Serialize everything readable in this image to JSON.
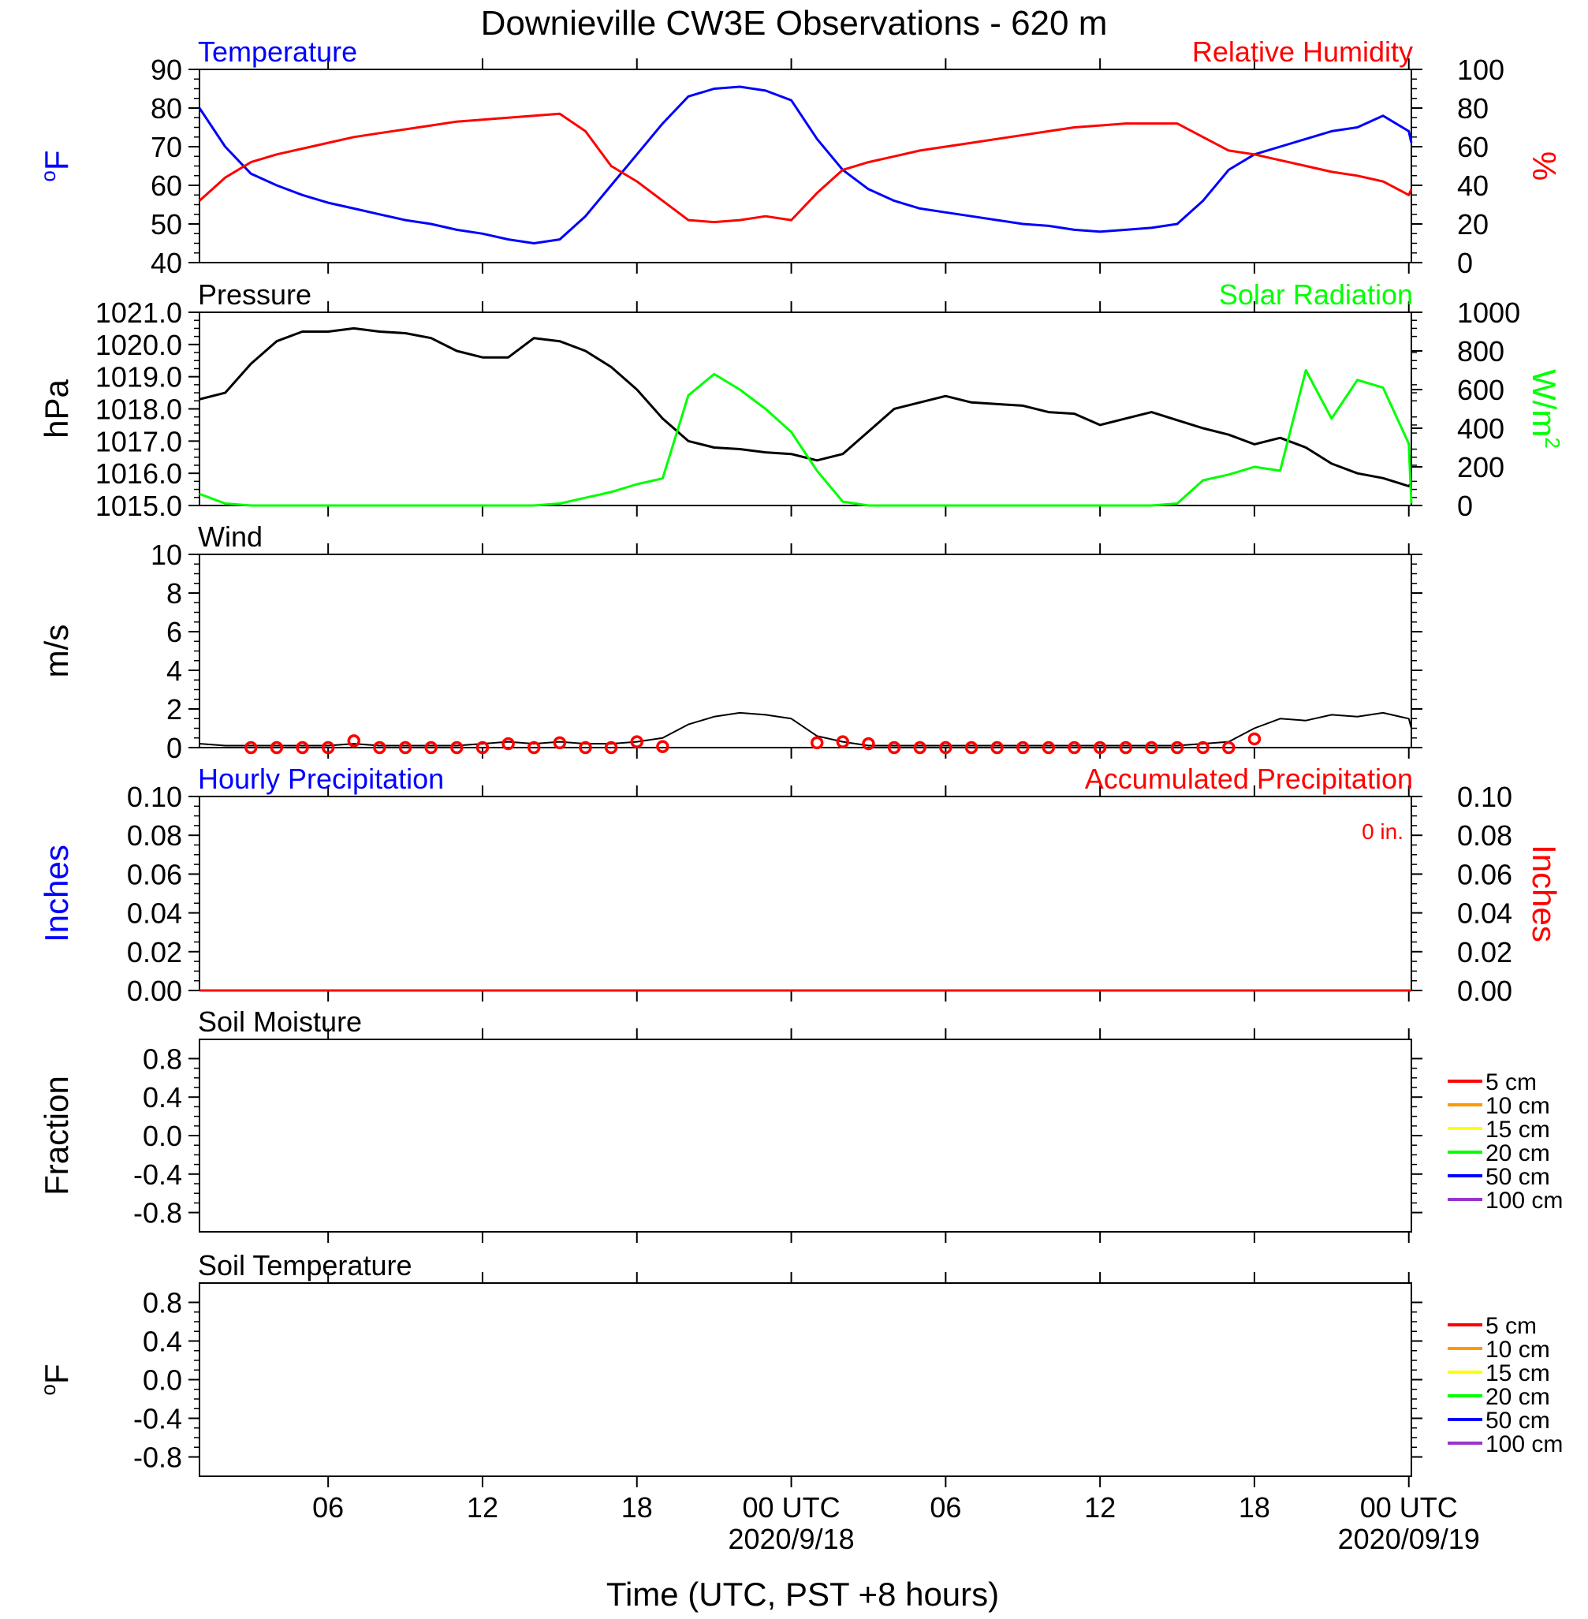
{
  "title": "Downieville CW3E Observations - 620 m",
  "x_axis": {
    "label": "Time (UTC, PST +8 hours)",
    "ticks": [
      {
        "label": "06",
        "sub": "",
        "hour": 6
      },
      {
        "label": "12",
        "sub": "",
        "hour": 12
      },
      {
        "label": "18",
        "sub": "",
        "hour": 18
      },
      {
        "label": "00 UTC",
        "sub": "2020/9/18",
        "hour": 24
      },
      {
        "label": "06",
        "sub": "",
        "hour": 30
      },
      {
        "label": "12",
        "sub": "",
        "hour": 36
      },
      {
        "label": "18",
        "sub": "",
        "hour": 42
      },
      {
        "label": "00 UTC",
        "sub": "2020/09/19",
        "hour": 48
      }
    ],
    "range_hours": [
      1,
      48.1
    ]
  },
  "chart_data": [
    {
      "type": "line",
      "title_left": "Temperature",
      "title_right": "Relative Humidity",
      "ylabel_left": "oF",
      "ylabel_right": "%",
      "ylim_left": [
        40,
        90
      ],
      "ylim_right": [
        0,
        100
      ],
      "yticks_left": [
        "40",
        "50",
        "60",
        "70",
        "80",
        "90"
      ],
      "yticks_right": [
        "0",
        "20",
        "40",
        "60",
        "80",
        "100"
      ],
      "x_hours": [
        1,
        2,
        3,
        4,
        5,
        6,
        7,
        8,
        9,
        10,
        11,
        12,
        13,
        14,
        15,
        16,
        17,
        18,
        19,
        20,
        21,
        22,
        23,
        24,
        25,
        26,
        27,
        28,
        29,
        30,
        31,
        32,
        33,
        34,
        35,
        36,
        37,
        38,
        39,
        40,
        41,
        42,
        43,
        44,
        45,
        46,
        47,
        48,
        48.1
      ],
      "series": [
        {
          "name": "Temperature",
          "axis": "left",
          "color": "#0000ff",
          "values": [
            80,
            70,
            63,
            60,
            57.5,
            55.5,
            54,
            52.5,
            51,
            50,
            48.5,
            47.5,
            46,
            45,
            46,
            52,
            60,
            68,
            76,
            83,
            85,
            85.5,
            84.5,
            82,
            72,
            64,
            59,
            56,
            54,
            53,
            52,
            51,
            50,
            49.5,
            48.5,
            48,
            48.5,
            49,
            50,
            56,
            64,
            68,
            70,
            72,
            74,
            75,
            78,
            74,
            71
          ]
        },
        {
          "name": "Relative Humidity",
          "axis": "right",
          "color": "#ff0000",
          "values": [
            32,
            44,
            52,
            56,
            59,
            62,
            65,
            67,
            69,
            71,
            73,
            74,
            75,
            76,
            77,
            68,
            50,
            42,
            32,
            22,
            21,
            22,
            24,
            22,
            36,
            48,
            52,
            55,
            58,
            60,
            62,
            64,
            66,
            68,
            70,
            71,
            72,
            72,
            72,
            65,
            58,
            56,
            53,
            50,
            47,
            45,
            42,
            35,
            38
          ]
        }
      ]
    },
    {
      "type": "line",
      "title_left": "Pressure",
      "title_right": "Solar Radiation",
      "ylabel_left": "hPa",
      "ylabel_right": "W/m2",
      "ylim_left": [
        1015.0,
        1021.0
      ],
      "ylim_right": [
        0,
        1000
      ],
      "yticks_left": [
        "1015.0",
        "1016.0",
        "1017.0",
        "1018.0",
        "1019.0",
        "1020.0",
        "1021.0"
      ],
      "yticks_right": [
        "0",
        "200",
        "400",
        "600",
        "800",
        "1000"
      ],
      "x_hours": [
        1,
        2,
        3,
        4,
        5,
        6,
        7,
        8,
        9,
        10,
        11,
        12,
        13,
        14,
        15,
        16,
        17,
        18,
        19,
        20,
        21,
        22,
        23,
        24,
        25,
        26,
        27,
        28,
        29,
        30,
        31,
        32,
        33,
        34,
        35,
        36,
        37,
        38,
        39,
        40,
        41,
        42,
        43,
        44,
        45,
        46,
        47,
        48,
        48.1
      ],
      "series": [
        {
          "name": "Pressure",
          "axis": "left",
          "color": "#000000",
          "values": [
            1018.3,
            1018.5,
            1019.4,
            1020.1,
            1020.4,
            1020.4,
            1020.5,
            1020.4,
            1020.35,
            1020.2,
            1019.8,
            1019.6,
            1019.6,
            1020.2,
            1020.1,
            1019.8,
            1019.3,
            1018.6,
            1017.7,
            1017.0,
            1016.8,
            1016.75,
            1016.65,
            1016.6,
            1016.4,
            1016.6,
            1017.3,
            1018.0,
            1018.2,
            1018.4,
            1018.2,
            1018.15,
            1018.1,
            1017.9,
            1017.85,
            1017.5,
            1017.7,
            1017.9,
            1017.65,
            1017.4,
            1017.2,
            1016.9,
            1017.1,
            1016.8,
            1016.3,
            1016.0,
            1015.85,
            1015.6,
            1015.7
          ]
        },
        {
          "name": "Solar Radiation",
          "axis": "right",
          "color": "#00ff00",
          "values": [
            60,
            10,
            0,
            0,
            0,
            0,
            0,
            0,
            0,
            0,
            0,
            0,
            0,
            0,
            10,
            40,
            70,
            110,
            140,
            570,
            680,
            600,
            500,
            380,
            180,
            20,
            0,
            0,
            0,
            0,
            0,
            0,
            0,
            0,
            0,
            0,
            0,
            0,
            10,
            130,
            160,
            200,
            180,
            700,
            450,
            650,
            610,
            320,
            10
          ]
        }
      ]
    },
    {
      "type": "line",
      "title_left": "Wind",
      "ylabel_left": "m/s",
      "ylim_left": [
        0,
        10
      ],
      "yticks_left": [
        "0",
        "2",
        "4",
        "6",
        "8",
        "10"
      ],
      "x_hours": [
        1,
        2,
        3,
        4,
        5,
        6,
        7,
        8,
        9,
        10,
        11,
        12,
        13,
        14,
        15,
        16,
        17,
        18,
        19,
        20,
        21,
        22,
        23,
        24,
        25,
        26,
        27,
        28,
        29,
        30,
        31,
        32,
        33,
        34,
        35,
        36,
        37,
        38,
        39,
        40,
        41,
        42,
        43,
        44,
        45,
        46,
        47,
        48,
        48.1
      ],
      "series": [
        {
          "name": "Wind speed",
          "axis": "left",
          "color": "#000000",
          "values": [
            0.2,
            0.1,
            0.1,
            0.1,
            0.1,
            0.1,
            0.2,
            0.1,
            0.1,
            0.1,
            0.1,
            0.2,
            0.3,
            0.2,
            0.3,
            0.2,
            0.2,
            0.3,
            0.5,
            1.2,
            1.6,
            1.8,
            1.7,
            1.5,
            0.6,
            0.3,
            0.1,
            0.1,
            0.1,
            0.1,
            0.1,
            0.1,
            0.1,
            0.1,
            0.1,
            0.1,
            0.1,
            0.1,
            0.1,
            0.2,
            0.3,
            1.0,
            1.5,
            1.4,
            1.7,
            1.6,
            1.8,
            1.5,
            1.0
          ]
        },
        {
          "name": "Hourly wind markers",
          "axis": "left",
          "color": "#ff0000",
          "x_hours": [
            3,
            4,
            5,
            6,
            7,
            8,
            9,
            10,
            11,
            12,
            13,
            14,
            15,
            16,
            17,
            18,
            19,
            25,
            26,
            27,
            28,
            29,
            30,
            31,
            32,
            33,
            34,
            35,
            36,
            37,
            38,
            39,
            40,
            41,
            42
          ],
          "values": [
            0,
            0,
            0,
            0,
            0.35,
            0,
            0,
            0,
            0,
            0,
            0.2,
            0,
            0.25,
            0,
            0,
            0.3,
            0.05,
            0.25,
            0.3,
            0.2,
            0,
            0,
            0,
            0,
            0,
            0,
            0,
            0,
            0,
            0,
            0,
            0,
            0,
            0,
            0.45
          ]
        }
      ]
    },
    {
      "type": "line",
      "title_left": "Hourly Precipitation",
      "title_right": "Accumulated Precipitation",
      "annotation": "0 in.",
      "ylabel_left": "Inches",
      "ylabel_right": "Inches",
      "ylim_left": [
        0,
        0.1
      ],
      "ylim_right": [
        0,
        0.1
      ],
      "yticks_left": [
        "0.00",
        "0.02",
        "0.04",
        "0.06",
        "0.08",
        "0.10"
      ],
      "yticks_right": [
        "0.00",
        "0.02",
        "0.04",
        "0.06",
        "0.08",
        "0.10"
      ],
      "x_hours": [
        1,
        48.1
      ],
      "series": [
        {
          "name": "Hourly Precipitation",
          "axis": "left",
          "color": "#0000ff",
          "values": [
            0,
            0
          ]
        },
        {
          "name": "Accumulated Precipitation",
          "axis": "right",
          "color": "#ff0000",
          "values": [
            0,
            0
          ]
        }
      ]
    },
    {
      "type": "line",
      "title_left": "Soil Moisture",
      "ylabel_left": "Fraction",
      "ylim_left": [
        -1,
        1
      ],
      "yticks_left": [
        "-0.8",
        "-0.4",
        "0.0",
        "0.4",
        "0.8"
      ],
      "legend": [
        {
          "label": "5 cm",
          "color": "#ff0000"
        },
        {
          "label": "10 cm",
          "color": "#ff9900"
        },
        {
          "label": "15 cm",
          "color": "#ffff00"
        },
        {
          "label": "20 cm",
          "color": "#00ff00"
        },
        {
          "label": "50 cm",
          "color": "#0000ff"
        },
        {
          "label": "100 cm",
          "color": "#9933cc"
        }
      ],
      "series": []
    },
    {
      "type": "line",
      "title_left": "Soil Temperature",
      "ylabel_left": "oF",
      "ylim_left": [
        -1,
        1
      ],
      "yticks_left": [
        "-0.8",
        "-0.4",
        "0.0",
        "0.4",
        "0.8"
      ],
      "legend": [
        {
          "label": "5 cm",
          "color": "#ff0000"
        },
        {
          "label": "10 cm",
          "color": "#ff9900"
        },
        {
          "label": "15 cm",
          "color": "#ffff00"
        },
        {
          "label": "20 cm",
          "color": "#00ff00"
        },
        {
          "label": "50 cm",
          "color": "#0000ff"
        },
        {
          "label": "100 cm",
          "color": "#9933cc"
        }
      ],
      "series": []
    }
  ]
}
